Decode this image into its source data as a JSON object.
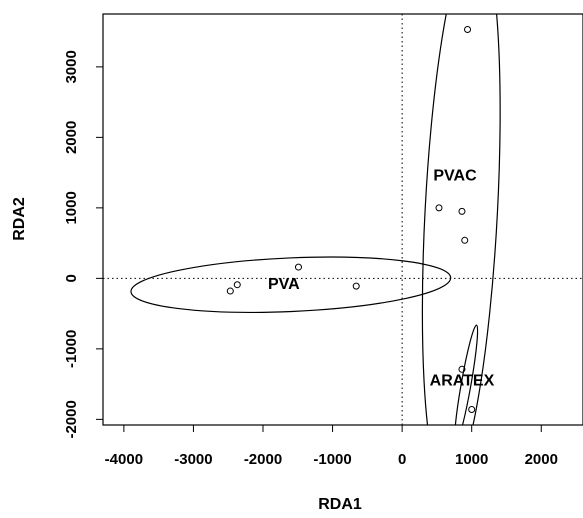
{
  "chart_data": {
    "type": "scatter",
    "xlabel": "RDA1",
    "ylabel": "RDA2",
    "xlim": [
      -4300,
      2600
    ],
    "ylim": [
      -2080,
      3750
    ],
    "x_ticks": [
      -4000,
      -3000,
      -2000,
      -1000,
      0,
      1000,
      2000
    ],
    "y_ticks": [
      -2000,
      -1000,
      0,
      1000,
      2000,
      3000
    ],
    "reference_lines": {
      "x": 0,
      "y": 0,
      "style": "dotted"
    },
    "grid": false,
    "points": [
      {
        "x": -2470,
        "y": -180
      },
      {
        "x": -2370,
        "y": -90
      },
      {
        "x": -1490,
        "y": 160
      },
      {
        "x": -660,
        "y": -110
      },
      {
        "x": 940,
        "y": 3530
      },
      {
        "x": 530,
        "y": 1000
      },
      {
        "x": 860,
        "y": 950
      },
      {
        "x": 900,
        "y": 540
      },
      {
        "x": 860,
        "y": -1290
      },
      {
        "x": 1000,
        "y": -1860
      }
    ],
    "groups": [
      {
        "label": "PVA",
        "ellipse": {
          "cx": -1600,
          "cy": -90,
          "rx": 2300,
          "ry": 380,
          "angle_deg": -2.5
        },
        "label_position": {
          "x": -1700,
          "y": -90
        }
      },
      {
        "label": "PVAC",
        "ellipse": {
          "cx": 850,
          "cy": 950,
          "rx": 520,
          "ry": 3900,
          "angle_deg": 3
        },
        "label_position": {
          "x": 760,
          "y": 1450
        }
      },
      {
        "label": "ARATEX",
        "ellipse": {
          "cx": 920,
          "cy": -1500,
          "rx": 70,
          "ry": 850,
          "angle_deg": 10
        },
        "label_position": {
          "x": 860,
          "y": -1460
        }
      }
    ]
  }
}
